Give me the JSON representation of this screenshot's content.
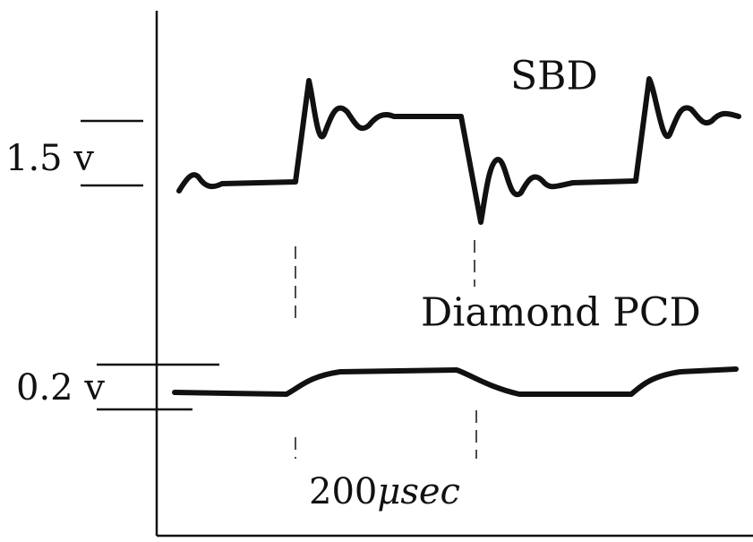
{
  "scales": {
    "upper": "1.5 v",
    "lower": "0.2 v"
  },
  "traces": {
    "upper": "SBD",
    "lower": "Diamond PCD"
  },
  "time_scale": {
    "value": "200",
    "unit": "μsec"
  }
}
